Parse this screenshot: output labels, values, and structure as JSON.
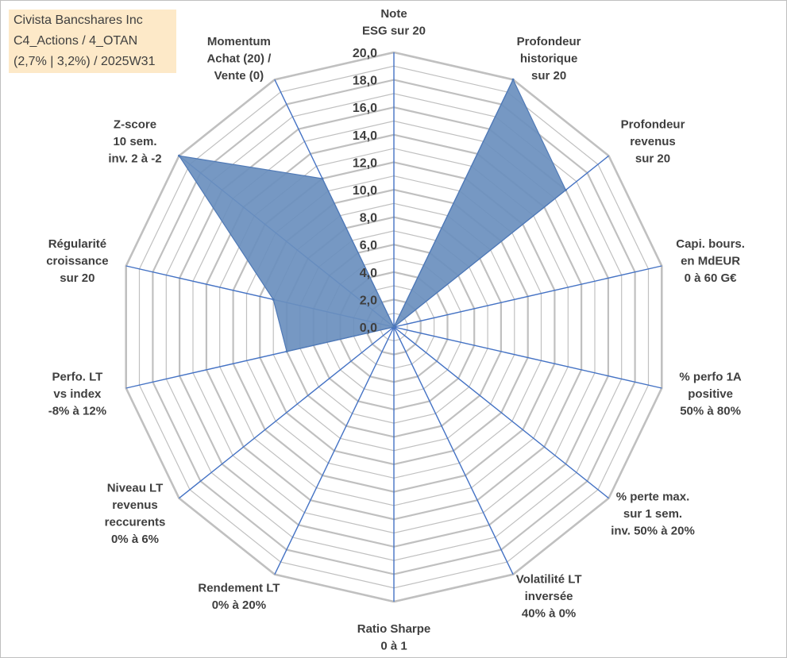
{
  "title": {
    "lines": [
      "Civista Bancshares Inc",
      "C4_Actions / 4_OTAN",
      "(2,7% | 3,2%) / 2025W31"
    ]
  },
  "colors": {
    "fill": "#6a8fbe",
    "edge": "#4f79b6",
    "spoke": "#4472c4",
    "grid": "#c0c0c0",
    "title_bg": "#fde9c8"
  },
  "chart_data": {
    "type": "radar",
    "r_range": [
      0,
      20
    ],
    "ticks": [
      "0,0",
      "2,0",
      "4,0",
      "6,0",
      "8,0",
      "10,0",
      "12,0",
      "14,0",
      "16,0",
      "18,0",
      "20,0"
    ],
    "grid": true,
    "axes": [
      {
        "label": [
          "Note",
          "ESG sur 20"
        ],
        "value": 0
      },
      {
        "label": [
          "Profondeur",
          "historique",
          "sur 20"
        ],
        "value": 20
      },
      {
        "label": [
          "Profondeur",
          "revenus",
          "sur 20"
        ],
        "value": 16
      },
      {
        "label": [
          "Capi. bours.",
          "en MdEUR",
          "0 à 60 G€"
        ],
        "value": 0
      },
      {
        "label": [
          "% perfo 1A",
          "positive",
          "50% à 80%"
        ],
        "value": 0
      },
      {
        "label": [
          "% perte max.",
          "sur 1 sem.",
          "inv. 50% à 20%"
        ],
        "value": 0
      },
      {
        "label": [
          "Volatilité LT",
          "inversée",
          "40% à 0%"
        ],
        "value": 0
      },
      {
        "label": [
          "Ratio Sharpe",
          "0 à 1"
        ],
        "value": 0
      },
      {
        "label": [
          "Rendement LT",
          "0% à 20%"
        ],
        "value": 0
      },
      {
        "label": [
          "Niveau LT",
          "revenus",
          "reccurents",
          "0% à 6%"
        ],
        "value": 0
      },
      {
        "label": [
          "Perfo. LT",
          "vs index",
          "-8% à 12%"
        ],
        "value": 8
      },
      {
        "label": [
          "Régularité",
          "croissance",
          "sur 20"
        ],
        "value": 9
      },
      {
        "label": [
          "Z-score",
          "10 sem.",
          "inv. 2 à -2"
        ],
        "value": 20
      },
      {
        "label": [
          "Momentum",
          "Achat (20) /",
          "Vente (0)"
        ],
        "value": 12
      }
    ]
  }
}
